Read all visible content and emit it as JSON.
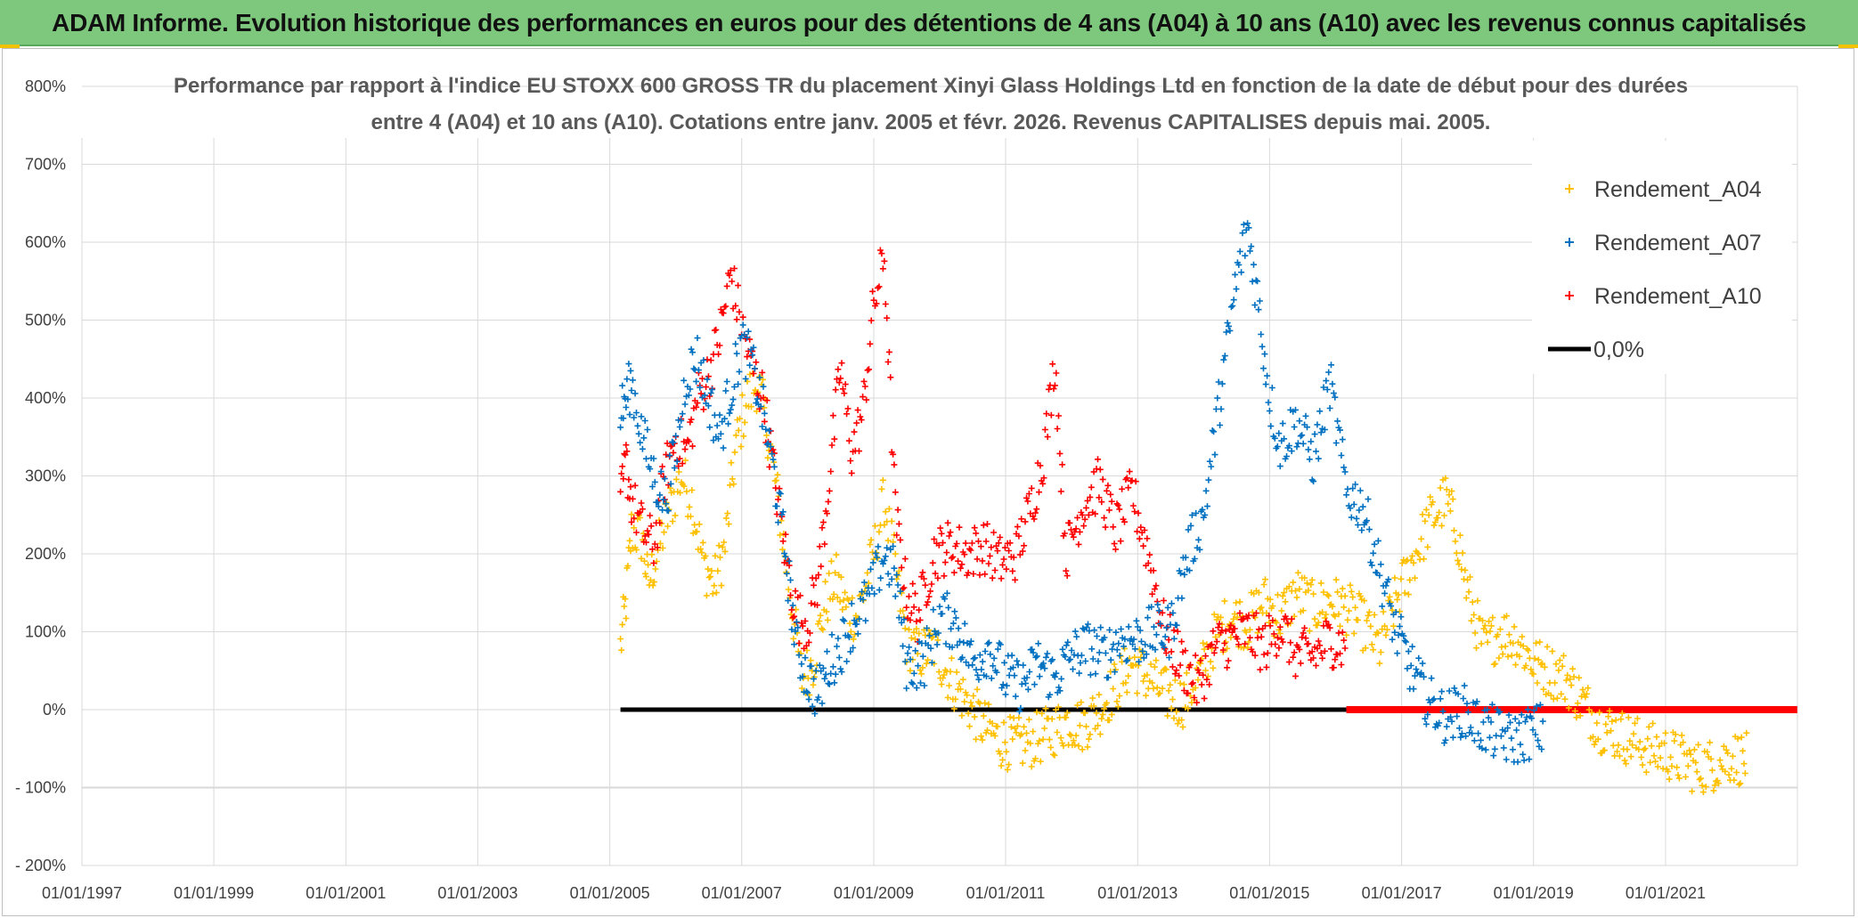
{
  "banner": {
    "title": "ADAM Informe. Evolution historique des performances en euros pour des détentions de 4 ans (A04) à 10 ans (A10) avec les revenus connus capitalisés"
  },
  "colors": {
    "banner_bg": "#7dc87c",
    "A04": "#ffc000",
    "A07": "#0070c0",
    "A10": "#ff0000",
    "zero": "#000000"
  },
  "chart_data": {
    "type": "scatter",
    "title_line1": "Performance par rapport à l'indice EU STOXX 600 GROSS TR  du placement Xinyi Glass Holdings Ltd en fonction de la date de début pour des durées",
    "title_line2": "entre 4 (A04) et 10 ans (A10). Cotations entre janv. 2005 et févr. 2026. Revenus CAPITALISES depuis mai. 2005.",
    "xlabel": "",
    "ylabel": "",
    "ylim": [
      -200,
      800
    ],
    "y_ticks": [
      "- 200%",
      "- 100%",
      "0%",
      "100%",
      "200%",
      "300%",
      "400%",
      "500%",
      "600%",
      "700%",
      "800%"
    ],
    "x_ticks": [
      "01/01/1997",
      "01/01/1999",
      "01/01/2001",
      "01/01/2003",
      "01/01/2005",
      "01/01/2007",
      "01/01/2009",
      "01/01/2011",
      "01/01/2013",
      "01/01/2015",
      "01/01/2017",
      "01/01/2019",
      "01/01/2021"
    ],
    "x_range": [
      "1997-01-01",
      "2023-01-01"
    ],
    "grid": true,
    "legend_position": "top-right",
    "series": [
      {
        "name": "Rendement_A04",
        "marker": "+",
        "points": [
          [
            "2005-03-01",
            80
          ],
          [
            "2005-04-01",
            140
          ],
          [
            "2005-05-01",
            230
          ],
          [
            "2005-07-01",
            220
          ],
          [
            "2005-08-01",
            160
          ],
          [
            "2005-10-01",
            210
          ],
          [
            "2005-12-01",
            260
          ],
          [
            "2006-02-01",
            300
          ],
          [
            "2006-04-01",
            270
          ],
          [
            "2006-06-01",
            190
          ],
          [
            "2006-08-01",
            160
          ],
          [
            "2006-10-01",
            210
          ],
          [
            "2006-12-01",
            340
          ],
          [
            "2007-02-01",
            400
          ],
          [
            "2007-04-01",
            420
          ],
          [
            "2007-06-01",
            350
          ],
          [
            "2007-08-01",
            250
          ],
          [
            "2007-10-01",
            140
          ],
          [
            "2007-12-01",
            40
          ],
          [
            "2008-02-01",
            60
          ],
          [
            "2008-04-01",
            130
          ],
          [
            "2008-06-01",
            170
          ],
          [
            "2008-08-01",
            130
          ],
          [
            "2008-10-01",
            120
          ],
          [
            "2009-01-01",
            200
          ],
          [
            "2009-03-01",
            270
          ],
          [
            "2009-05-01",
            180
          ],
          [
            "2009-07-01",
            90
          ],
          [
            "2009-09-01",
            70
          ],
          [
            "2009-12-01",
            80
          ],
          [
            "2010-03-01",
            40
          ],
          [
            "2010-06-01",
            10
          ],
          [
            "2010-09-01",
            -20
          ],
          [
            "2010-12-01",
            -40
          ],
          [
            "2011-03-01",
            -45
          ],
          [
            "2011-06-01",
            -40
          ],
          [
            "2011-09-01",
            -30
          ],
          [
            "2011-12-01",
            -15
          ],
          [
            "2012-03-01",
            -20
          ],
          [
            "2012-06-01",
            0
          ],
          [
            "2012-09-01",
            30
          ],
          [
            "2012-12-01",
            60
          ],
          [
            "2013-03-01",
            40
          ],
          [
            "2013-06-01",
            20
          ],
          [
            "2013-09-01",
            10
          ],
          [
            "2013-12-01",
            40
          ],
          [
            "2014-03-01",
            90
          ],
          [
            "2014-06-01",
            120
          ],
          [
            "2014-09-01",
            110
          ],
          [
            "2014-12-01",
            140
          ],
          [
            "2015-03-01",
            120
          ],
          [
            "2015-06-01",
            150
          ],
          [
            "2015-09-01",
            130
          ],
          [
            "2015-12-01",
            140
          ],
          [
            "2016-03-01",
            130
          ],
          [
            "2016-06-01",
            110
          ],
          [
            "2016-09-01",
            80
          ],
          [
            "2016-12-01",
            140
          ],
          [
            "2017-03-01",
            190
          ],
          [
            "2017-06-01",
            240
          ],
          [
            "2017-09-01",
            270
          ],
          [
            "2017-11-01",
            230
          ],
          [
            "2018-01-01",
            150
          ],
          [
            "2018-04-01",
            80
          ],
          [
            "2018-07-01",
            100
          ],
          [
            "2018-10-01",
            90
          ],
          [
            "2019-01-01",
            60
          ],
          [
            "2019-04-01",
            50
          ],
          [
            "2019-07-01",
            40
          ],
          [
            "2019-10-01",
            10
          ],
          [
            "2020-01-01",
            -20
          ],
          [
            "2020-04-01",
            -30
          ],
          [
            "2020-07-01",
            -40
          ],
          [
            "2020-10-01",
            -50
          ],
          [
            "2021-01-01",
            -55
          ],
          [
            "2021-04-01",
            -65
          ],
          [
            "2021-07-01",
            -75
          ],
          [
            "2021-10-01",
            -70
          ],
          [
            "2022-01-01",
            -60
          ],
          [
            "2022-04-01",
            -65
          ]
        ]
      },
      {
        "name": "Rendement_A07",
        "marker": "+",
        "points": [
          [
            "2005-03-01",
            380
          ],
          [
            "2005-04-01",
            400
          ],
          [
            "2005-05-01",
            420
          ],
          [
            "2005-07-01",
            350
          ],
          [
            "2005-09-01",
            300
          ],
          [
            "2005-11-01",
            270
          ],
          [
            "2006-01-01",
            330
          ],
          [
            "2006-03-01",
            430
          ],
          [
            "2006-05-01",
            450
          ],
          [
            "2006-07-01",
            400
          ],
          [
            "2006-09-01",
            350
          ],
          [
            "2006-11-01",
            410
          ],
          [
            "2007-01-01",
            470
          ],
          [
            "2007-03-01",
            440
          ],
          [
            "2007-05-01",
            380
          ],
          [
            "2007-07-01",
            300
          ],
          [
            "2007-09-01",
            200
          ],
          [
            "2007-11-01",
            80
          ],
          [
            "2008-01-01",
            40
          ],
          [
            "2008-03-01",
            20
          ],
          [
            "2008-05-01",
            60
          ],
          [
            "2008-07-01",
            80
          ],
          [
            "2008-09-01",
            110
          ],
          [
            "2008-12-01",
            140
          ],
          [
            "2009-03-01",
            200
          ],
          [
            "2009-05-01",
            170
          ],
          [
            "2009-07-01",
            60
          ],
          [
            "2009-10-01",
            60
          ],
          [
            "2010-01-01",
            120
          ],
          [
            "2010-04-01",
            110
          ],
          [
            "2010-07-01",
            60
          ],
          [
            "2010-10-01",
            80
          ],
          [
            "2011-01-01",
            40
          ],
          [
            "2011-04-01",
            30
          ],
          [
            "2011-07-01",
            60
          ],
          [
            "2011-10-01",
            40
          ],
          [
            "2012-01-01",
            70
          ],
          [
            "2012-04-01",
            80
          ],
          [
            "2012-07-01",
            70
          ],
          [
            "2012-10-01",
            90
          ],
          [
            "2013-01-01",
            90
          ],
          [
            "2013-04-01",
            100
          ],
          [
            "2013-07-01",
            100
          ],
          [
            "2013-10-01",
            200
          ],
          [
            "2014-01-01",
            250
          ],
          [
            "2014-04-01",
            400
          ],
          [
            "2014-07-01",
            550
          ],
          [
            "2014-09-01",
            620
          ],
          [
            "2014-11-01",
            520
          ],
          [
            "2015-01-01",
            400
          ],
          [
            "2015-03-01",
            340
          ],
          [
            "2015-06-01",
            370
          ],
          [
            "2015-09-01",
            320
          ],
          [
            "2015-12-01",
            420
          ],
          [
            "2016-03-01",
            280
          ],
          [
            "2016-06-01",
            260
          ],
          [
            "2016-09-01",
            180
          ],
          [
            "2016-12-01",
            100
          ],
          [
            "2017-03-01",
            50
          ],
          [
            "2017-06-01",
            10
          ],
          [
            "2017-09-01",
            -10
          ],
          [
            "2017-12-01",
            0
          ],
          [
            "2018-03-01",
            -20
          ],
          [
            "2018-06-01",
            -30
          ],
          [
            "2018-09-01",
            -40
          ],
          [
            "2018-12-01",
            -30
          ],
          [
            "2019-03-01",
            -25
          ]
        ]
      },
      {
        "name": "Rendement_A10",
        "marker": "+",
        "points": [
          [
            "2005-03-01",
            260
          ],
          [
            "2005-04-01",
            320
          ],
          [
            "2005-05-01",
            270
          ],
          [
            "2005-07-01",
            230
          ],
          [
            "2005-09-01",
            210
          ],
          [
            "2005-11-01",
            300
          ],
          [
            "2006-01-01",
            350
          ],
          [
            "2006-03-01",
            330
          ],
          [
            "2006-05-01",
            400
          ],
          [
            "2006-07-01",
            430
          ],
          [
            "2006-09-01",
            480
          ],
          [
            "2006-11-01",
            560
          ],
          [
            "2007-01-01",
            490
          ],
          [
            "2007-03-01",
            440
          ],
          [
            "2007-05-01",
            400
          ],
          [
            "2007-07-01",
            300
          ],
          [
            "2007-09-01",
            200
          ],
          [
            "2007-11-01",
            120
          ],
          [
            "2008-01-01",
            110
          ],
          [
            "2008-03-01",
            170
          ],
          [
            "2008-05-01",
            300
          ],
          [
            "2008-07-01",
            440
          ],
          [
            "2008-09-01",
            330
          ],
          [
            "2008-11-01",
            380
          ],
          [
            "2009-01-01",
            520
          ],
          [
            "2009-03-01",
            580
          ],
          [
            "2009-05-01",
            250
          ],
          [
            "2009-07-01",
            150
          ],
          [
            "2009-09-01",
            120
          ],
          [
            "2009-12-01",
            200
          ],
          [
            "2010-03-01",
            210
          ],
          [
            "2010-06-01",
            200
          ],
          [
            "2010-09-01",
            210
          ],
          [
            "2010-12-01",
            190
          ],
          [
            "2011-03-01",
            200
          ],
          [
            "2011-06-01",
            270
          ],
          [
            "2011-08-01",
            330
          ],
          [
            "2011-10-01",
            450
          ],
          [
            "2011-12-01",
            200
          ],
          [
            "2012-03-01",
            260
          ],
          [
            "2012-06-01",
            290
          ],
          [
            "2012-09-01",
            230
          ],
          [
            "2012-12-01",
            280
          ],
          [
            "2013-03-01",
            200
          ],
          [
            "2013-06-01",
            100
          ],
          [
            "2013-09-01",
            60
          ],
          [
            "2013-12-01",
            30
          ],
          [
            "2014-03-01",
            80
          ],
          [
            "2014-06-01",
            90
          ],
          [
            "2014-09-01",
            100
          ],
          [
            "2014-12-01",
            80
          ],
          [
            "2015-03-01",
            110
          ],
          [
            "2015-06-01",
            70
          ],
          [
            "2015-09-01",
            70
          ],
          [
            "2015-12-01",
            90
          ],
          [
            "2016-03-01",
            80
          ]
        ]
      },
      {
        "name": "0,0%",
        "marker": "line",
        "points": [
          [
            "2005-03-01",
            0
          ],
          [
            "2016-03-01",
            0
          ]
        ]
      }
    ],
    "red_zero_band": [
      [
        "2016-03-01",
        0
      ],
      [
        "2022-12-31",
        0
      ]
    ],
    "legend": [
      "Rendement_A04",
      "Rendement_A07",
      "Rendement_A10",
      "0,0%"
    ]
  }
}
